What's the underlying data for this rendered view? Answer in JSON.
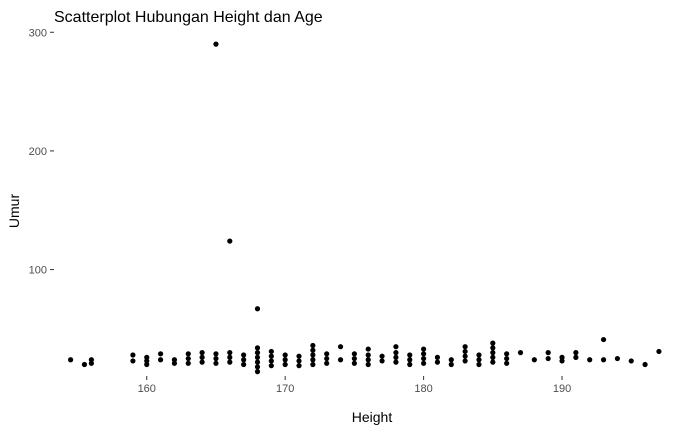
{
  "chart_data": {
    "type": "scatter",
    "title": "Scatterplot Hubungan Height dan Age",
    "xlabel": "Height",
    "ylabel": "Umur",
    "xlim": [
      153.3,
      197.8
    ],
    "ylim": [
      10.3,
      303.6
    ],
    "x_ticks": [
      160,
      170,
      180,
      190
    ],
    "y_ticks": [
      100,
      200,
      300
    ],
    "grid": false,
    "series": [
      {
        "points": [
          {
            "x": 154.5,
            "y": 24
          },
          {
            "x": 155.5,
            "y": 20
          },
          {
            "x": 156,
            "y": 21
          },
          {
            "x": 156,
            "y": 24
          },
          {
            "x": 159,
            "y": 23
          },
          {
            "x": 159,
            "y": 28
          },
          {
            "x": 160,
            "y": 20
          },
          {
            "x": 160,
            "y": 23
          },
          {
            "x": 160,
            "y": 26
          },
          {
            "x": 161,
            "y": 24
          },
          {
            "x": 161,
            "y": 29
          },
          {
            "x": 162,
            "y": 21
          },
          {
            "x": 162,
            "y": 24
          },
          {
            "x": 163,
            "y": 21
          },
          {
            "x": 163,
            "y": 25
          },
          {
            "x": 163,
            "y": 29
          },
          {
            "x": 164,
            "y": 22
          },
          {
            "x": 164,
            "y": 26
          },
          {
            "x": 164,
            "y": 30
          },
          {
            "x": 165,
            "y": 21
          },
          {
            "x": 165,
            "y": 25
          },
          {
            "x": 165,
            "y": 29
          },
          {
            "x": 165,
            "y": 290
          },
          {
            "x": 166,
            "y": 22
          },
          {
            "x": 166,
            "y": 26
          },
          {
            "x": 166,
            "y": 30
          },
          {
            "x": 166,
            "y": 124
          },
          {
            "x": 167,
            "y": 20
          },
          {
            "x": 167,
            "y": 24
          },
          {
            "x": 167,
            "y": 28
          },
          {
            "x": 168,
            "y": 14
          },
          {
            "x": 168,
            "y": 18
          },
          {
            "x": 168,
            "y": 22
          },
          {
            "x": 168,
            "y": 26
          },
          {
            "x": 168,
            "y": 30
          },
          {
            "x": 168,
            "y": 34
          },
          {
            "x": 168,
            "y": 67
          },
          {
            "x": 169,
            "y": 19
          },
          {
            "x": 169,
            "y": 23
          },
          {
            "x": 169,
            "y": 27
          },
          {
            "x": 169,
            "y": 31
          },
          {
            "x": 170,
            "y": 20
          },
          {
            "x": 170,
            "y": 24
          },
          {
            "x": 170,
            "y": 28
          },
          {
            "x": 171,
            "y": 19
          },
          {
            "x": 171,
            "y": 23
          },
          {
            "x": 171,
            "y": 27
          },
          {
            "x": 172,
            "y": 20
          },
          {
            "x": 172,
            "y": 24
          },
          {
            "x": 172,
            "y": 28
          },
          {
            "x": 172,
            "y": 32
          },
          {
            "x": 172,
            "y": 36
          },
          {
            "x": 173,
            "y": 21
          },
          {
            "x": 173,
            "y": 25
          },
          {
            "x": 173,
            "y": 29
          },
          {
            "x": 174,
            "y": 24
          },
          {
            "x": 174,
            "y": 35
          },
          {
            "x": 175,
            "y": 21
          },
          {
            "x": 175,
            "y": 25
          },
          {
            "x": 175,
            "y": 29
          },
          {
            "x": 176,
            "y": 20
          },
          {
            "x": 176,
            "y": 24
          },
          {
            "x": 176,
            "y": 28
          },
          {
            "x": 176,
            "y": 33
          },
          {
            "x": 177,
            "y": 23
          },
          {
            "x": 177,
            "y": 27
          },
          {
            "x": 178,
            "y": 22
          },
          {
            "x": 178,
            "y": 26
          },
          {
            "x": 178,
            "y": 30
          },
          {
            "x": 178,
            "y": 35
          },
          {
            "x": 179,
            "y": 20
          },
          {
            "x": 179,
            "y": 24
          },
          {
            "x": 179,
            "y": 28
          },
          {
            "x": 180,
            "y": 21
          },
          {
            "x": 180,
            "y": 25
          },
          {
            "x": 180,
            "y": 29
          },
          {
            "x": 180,
            "y": 33
          },
          {
            "x": 181,
            "y": 22
          },
          {
            "x": 181,
            "y": 26
          },
          {
            "x": 182,
            "y": 20
          },
          {
            "x": 182,
            "y": 24
          },
          {
            "x": 183,
            "y": 23
          },
          {
            "x": 183,
            "y": 27
          },
          {
            "x": 183,
            "y": 31
          },
          {
            "x": 183,
            "y": 35
          },
          {
            "x": 184,
            "y": 20
          },
          {
            "x": 184,
            "y": 24
          },
          {
            "x": 184,
            "y": 28
          },
          {
            "x": 185,
            "y": 22
          },
          {
            "x": 185,
            "y": 26
          },
          {
            "x": 185,
            "y": 30
          },
          {
            "x": 185,
            "y": 34
          },
          {
            "x": 185,
            "y": 38
          },
          {
            "x": 186,
            "y": 21
          },
          {
            "x": 186,
            "y": 25
          },
          {
            "x": 186,
            "y": 29
          },
          {
            "x": 187,
            "y": 30
          },
          {
            "x": 188,
            "y": 24
          },
          {
            "x": 189,
            "y": 25
          },
          {
            "x": 189,
            "y": 30
          },
          {
            "x": 190,
            "y": 23
          },
          {
            "x": 190,
            "y": 26
          },
          {
            "x": 191,
            "y": 26
          },
          {
            "x": 191,
            "y": 30
          },
          {
            "x": 192,
            "y": 24
          },
          {
            "x": 193,
            "y": 24
          },
          {
            "x": 193,
            "y": 41
          },
          {
            "x": 194,
            "y": 25
          },
          {
            "x": 195,
            "y": 23
          },
          {
            "x": 196,
            "y": 20
          },
          {
            "x": 197,
            "y": 31
          }
        ]
      }
    ]
  }
}
